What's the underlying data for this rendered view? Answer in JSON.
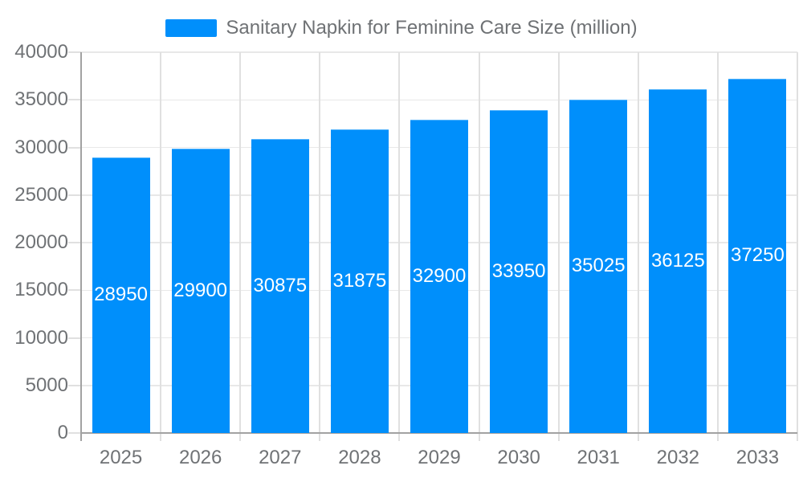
{
  "chart_data": {
    "type": "bar",
    "title": "Sanitary Napkin for Feminine Care Size (million)",
    "legend": {
      "label": "Sanitary Napkin for Feminine Care Size (million)",
      "position": "top-center"
    },
    "categories": [
      "2025",
      "2026",
      "2027",
      "2028",
      "2029",
      "2030",
      "2031",
      "2032",
      "2033"
    ],
    "series": [
      {
        "name": "Sanitary Napkin for Feminine Care Size (million)",
        "values": [
          28950,
          29900,
          30875,
          31875,
          32900,
          33950,
          35025,
          36125,
          37250
        ]
      }
    ],
    "value_labels": [
      "28950",
      "29900",
      "30875",
      "31875",
      "32900",
      "33950",
      "35025",
      "36125",
      "37250"
    ],
    "xlabel": "",
    "ylabel": "",
    "ylim": [
      0,
      40000
    ],
    "ytick_step": 5000,
    "y_tick_labels": [
      "0",
      "5000",
      "10000",
      "15000",
      "20000",
      "25000",
      "30000",
      "35000",
      "40000"
    ],
    "grid": true,
    "colors": {
      "bar": "#008FFB",
      "data_label_text": "#ffffff",
      "axis_text": "#6f7275",
      "legend_text": "#6f7275",
      "gridline_horizontal": "#e8e8e8",
      "gridline_vertical": "#e0e0e0",
      "axis_line": "#a2a2a2",
      "background": "#ffffff"
    }
  }
}
